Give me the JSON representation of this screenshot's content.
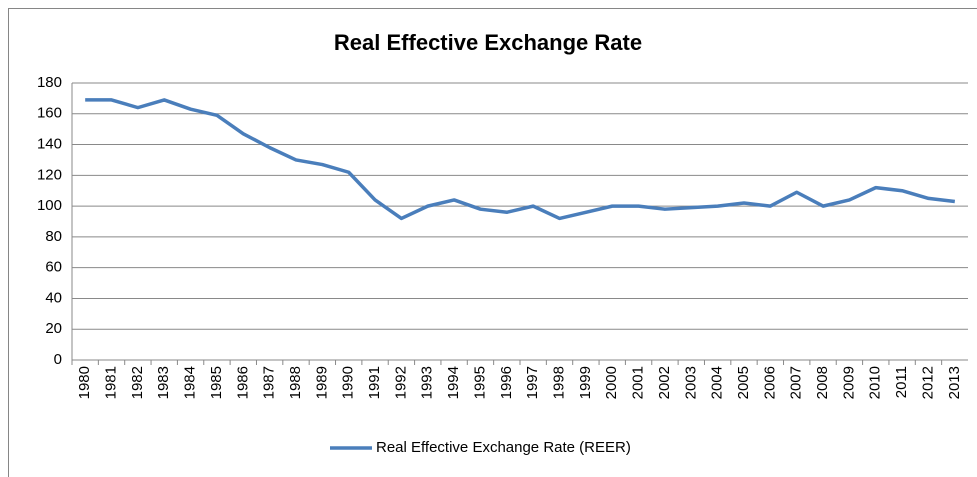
{
  "chart_data": {
    "type": "line",
    "title": "Real Effective Exchange Rate",
    "categories": [
      "1980",
      "1981",
      "1982",
      "1983",
      "1984",
      "1985",
      "1986",
      "1987",
      "1988",
      "1989",
      "1990",
      "1991",
      "1992",
      "1993",
      "1994",
      "1995",
      "1996",
      "1997",
      "1998",
      "1999",
      "2000",
      "2001",
      "2002",
      "2003",
      "2004",
      "2005",
      "2006",
      "2007",
      "2008",
      "2009",
      "2010",
      "2011",
      "2012",
      "2013"
    ],
    "series": [
      {
        "name": "Real Effective Exchange Rate (REER)",
        "color": "#4a7ebb",
        "values": [
          169,
          169,
          164,
          169,
          163,
          159,
          147,
          138,
          130,
          127,
          122,
          104,
          92,
          100,
          104,
          98,
          96,
          100,
          92,
          96,
          100,
          100,
          98,
          99,
          100,
          102,
          100,
          109,
          100,
          104,
          112,
          110,
          105,
          103
        ]
      }
    ],
    "ylim": [
      0,
      180
    ],
    "yticks": [
      0,
      20,
      40,
      60,
      80,
      100,
      120,
      140,
      160,
      180
    ],
    "grid": true,
    "legend": "bottom"
  }
}
